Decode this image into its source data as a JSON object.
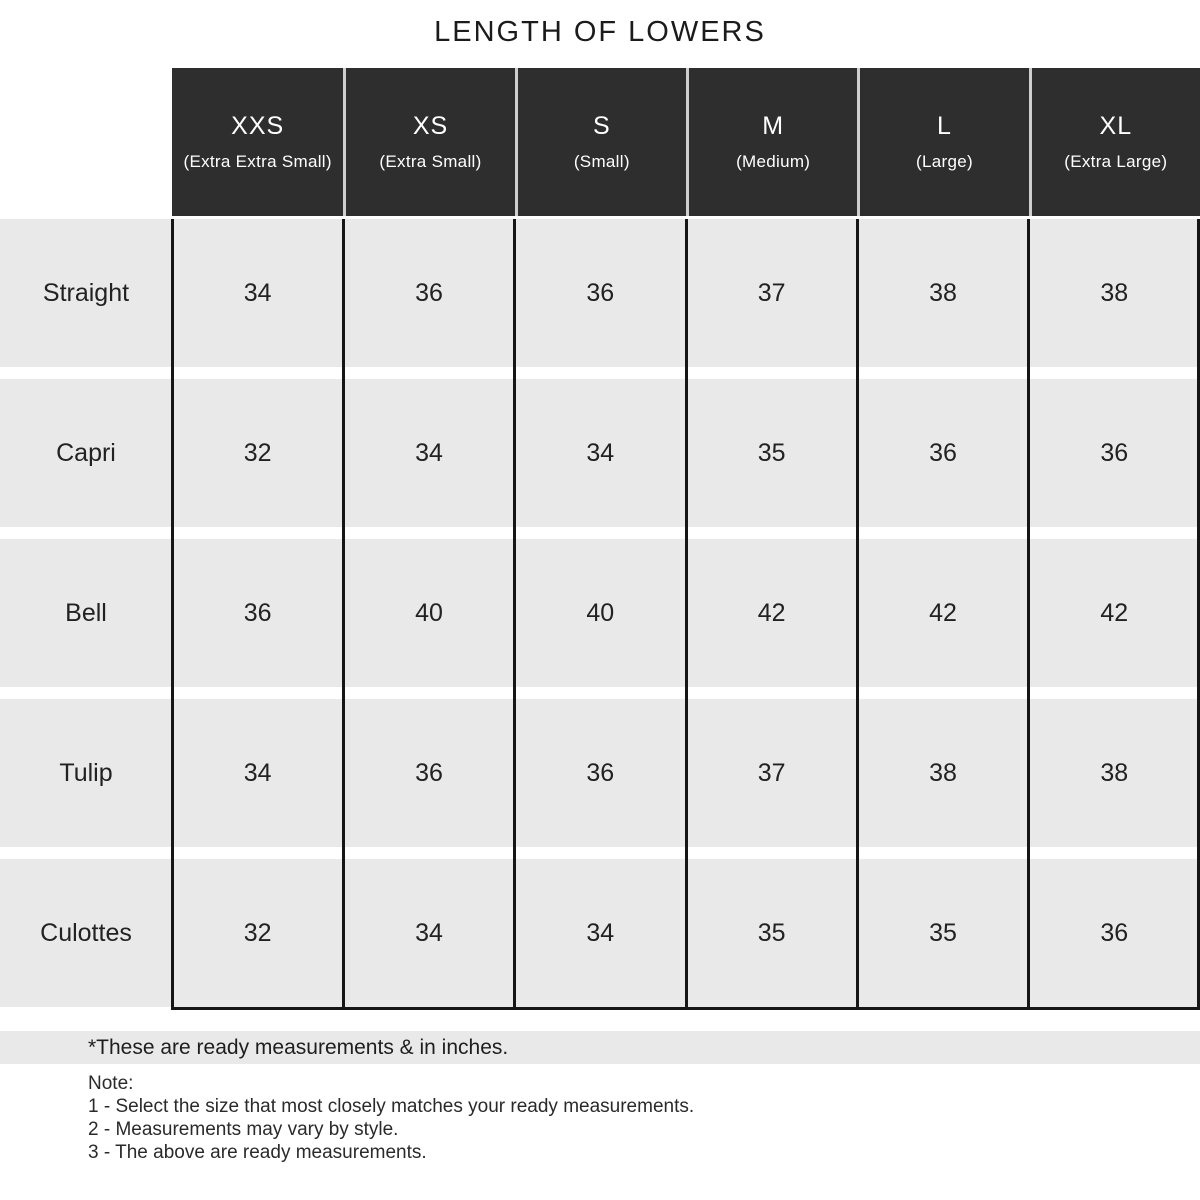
{
  "title": "LENGTH OF LOWERS",
  "table": {
    "columns": [
      {
        "size": "XXS",
        "full": "(Extra Extra Small)"
      },
      {
        "size": "XS",
        "full": "(Extra Small)"
      },
      {
        "size": "S",
        "full": "(Small)"
      },
      {
        "size": "M",
        "full": "(Medium)"
      },
      {
        "size": "L",
        "full": "(Large)"
      },
      {
        "size": "XL",
        "full": "(Extra Large)"
      }
    ],
    "rows": [
      {
        "label": "Straight",
        "values": [
          "34",
          "36",
          "36",
          "37",
          "38",
          "38"
        ]
      },
      {
        "label": "Capri",
        "values": [
          "32",
          "34",
          "34",
          "35",
          "36",
          "36"
        ]
      },
      {
        "label": "Bell",
        "values": [
          "36",
          "40",
          "40",
          "42",
          "42",
          "42"
        ]
      },
      {
        "label": "Tulip",
        "values": [
          "34",
          "36",
          "36",
          "37",
          "38",
          "38"
        ]
      },
      {
        "label": "Culottes",
        "values": [
          "32",
          "34",
          "34",
          "35",
          "35",
          "36"
        ]
      }
    ]
  },
  "footnote": "*These are ready measurements & in inches.",
  "notes": {
    "heading": "Note:",
    "items": [
      "1 - Select the size that most closely matches your ready measurements.",
      "2 - Measurements may vary by style.",
      "3 - The above are ready measurements."
    ]
  },
  "colors": {
    "header_background": "#2e2e2e",
    "header_text": "#ffffff",
    "row_background": "#e9e9e9",
    "table_border": "#161616",
    "page_background": "#ffffff"
  },
  "chart_data": {
    "type": "table",
    "title": "LENGTH OF LOWERS",
    "unit": "inches",
    "categories": [
      "XXS (Extra Extra Small)",
      "XS (Extra Small)",
      "S (Small)",
      "M (Medium)",
      "L (Large)",
      "XL (Extra Large)"
    ],
    "series": [
      {
        "name": "Straight",
        "values": [
          34,
          36,
          36,
          37,
          38,
          38
        ]
      },
      {
        "name": "Capri",
        "values": [
          32,
          34,
          34,
          35,
          36,
          36
        ]
      },
      {
        "name": "Bell",
        "values": [
          36,
          40,
          40,
          42,
          42,
          42
        ]
      },
      {
        "name": "Tulip",
        "values": [
          34,
          36,
          36,
          37,
          38,
          38
        ]
      },
      {
        "name": "Culottes",
        "values": [
          32,
          34,
          34,
          35,
          35,
          36
        ]
      }
    ],
    "footnote": "*These are ready measurements & in inches."
  }
}
